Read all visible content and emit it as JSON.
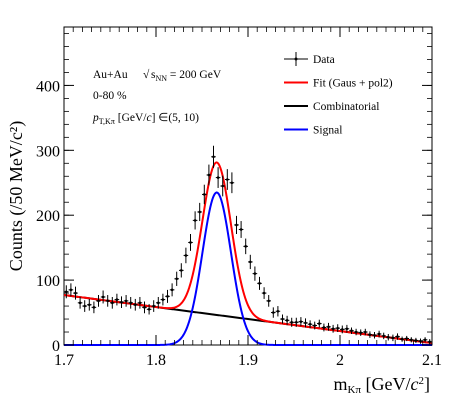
{
  "chart_data": {
    "type": "line",
    "title": "",
    "xlabel": "m_Kπ [GeV/c²]",
    "ylabel": "Counts (/50 MeV/c²)",
    "xlim": [
      1.7,
      2.1
    ],
    "ylim": [
      0,
      490
    ],
    "x_ticks": [
      1.7,
      1.8,
      1.9,
      2.0,
      2.1
    ],
    "x_tick_labels": [
      "1.7",
      "1.8",
      "1.9",
      "2",
      "2.1"
    ],
    "y_ticks": [
      0,
      100,
      200,
      300,
      400
    ],
    "y_tick_labels": [
      "0",
      "100",
      "200",
      "300",
      "400"
    ],
    "grid": false,
    "legend_position": "top-right",
    "annotations": {
      "line1_prefix": "Au+Au ",
      "line1_sqrt_s": "s",
      "line1_sub": "NN",
      "line1_suffix": " = 200 GeV",
      "line2": "0-80 %",
      "line3_p": "p",
      "line3_sub": "T,Kπ",
      "line3_units": " [GeV/",
      "line3_c": "c",
      "line3_range": "] ∈(5, 10)"
    },
    "legend": [
      {
        "name": "Data",
        "style": "errorbar",
        "color": "#000000"
      },
      {
        "name": "Fit (Gaus + pol2)",
        "style": "line",
        "color": "#ff0000"
      },
      {
        "name": "Combinatorial",
        "style": "line",
        "color": "#000000"
      },
      {
        "name": "Signal",
        "style": "line",
        "color": "#0000ff"
      }
    ],
    "data_points": [
      [
        1.7025,
        82,
        10
      ],
      [
        1.7075,
        85,
        10
      ],
      [
        1.7125,
        80,
        10
      ],
      [
        1.7175,
        65,
        9
      ],
      [
        1.7225,
        60,
        9
      ],
      [
        1.7275,
        62,
        9
      ],
      [
        1.7325,
        58,
        9
      ],
      [
        1.7375,
        68,
        9
      ],
      [
        1.7425,
        74,
        10
      ],
      [
        1.7475,
        68,
        9
      ],
      [
        1.7525,
        65,
        9
      ],
      [
        1.7575,
        70,
        9
      ],
      [
        1.7625,
        66,
        9
      ],
      [
        1.7675,
        68,
        9
      ],
      [
        1.7725,
        65,
        9
      ],
      [
        1.7775,
        62,
        9
      ],
      [
        1.7825,
        65,
        9
      ],
      [
        1.7875,
        58,
        9
      ],
      [
        1.7925,
        55,
        8
      ],
      [
        1.7975,
        60,
        9
      ],
      [
        1.8025,
        65,
        9
      ],
      [
        1.8075,
        70,
        9
      ],
      [
        1.8125,
        75,
        10
      ],
      [
        1.8175,
        85,
        10
      ],
      [
        1.8225,
        102,
        11
      ],
      [
        1.8275,
        115,
        11
      ],
      [
        1.8325,
        138,
        12
      ],
      [
        1.8375,
        158,
        13
      ],
      [
        1.8425,
        192,
        14
      ],
      [
        1.8475,
        205,
        14
      ],
      [
        1.8525,
        232,
        15
      ],
      [
        1.8575,
        262,
        16
      ],
      [
        1.8625,
        290,
        17
      ],
      [
        1.8675,
        258,
        16
      ],
      [
        1.8725,
        245,
        16
      ],
      [
        1.8775,
        255,
        16
      ],
      [
        1.8825,
        250,
        16
      ],
      [
        1.8875,
        185,
        14
      ],
      [
        1.8925,
        178,
        13
      ],
      [
        1.8975,
        152,
        12
      ],
      [
        1.9025,
        128,
        11
      ],
      [
        1.9075,
        110,
        11
      ],
      [
        1.9125,
        95,
        10
      ],
      [
        1.9175,
        80,
        9
      ],
      [
        1.9225,
        68,
        9
      ],
      [
        1.9275,
        50,
        8
      ],
      [
        1.9325,
        52,
        8
      ],
      [
        1.9375,
        40,
        7
      ],
      [
        1.9425,
        38,
        7
      ],
      [
        1.9475,
        35,
        7
      ],
      [
        1.9525,
        35,
        7
      ],
      [
        1.9575,
        36,
        7
      ],
      [
        1.9625,
        34,
        7
      ],
      [
        1.9675,
        32,
        6
      ],
      [
        1.9725,
        30,
        6
      ],
      [
        1.9775,
        33,
        6
      ],
      [
        1.9825,
        27,
        6
      ],
      [
        1.9875,
        28,
        6
      ],
      [
        1.9925,
        25,
        6
      ],
      [
        1.9975,
        26,
        6
      ],
      [
        2.0025,
        24,
        6
      ],
      [
        2.0075,
        25,
        6
      ],
      [
        2.0125,
        22,
        5
      ],
      [
        2.0175,
        20,
        5
      ],
      [
        2.0225,
        19,
        5
      ],
      [
        2.0275,
        20,
        5
      ],
      [
        2.0325,
        16,
        5
      ],
      [
        2.0375,
        15,
        5
      ],
      [
        2.0425,
        17,
        5
      ],
      [
        2.0475,
        14,
        5
      ],
      [
        2.0525,
        12,
        5
      ],
      [
        2.0575,
        11,
        5
      ],
      [
        2.0625,
        13,
        5
      ],
      [
        2.0675,
        9,
        4
      ],
      [
        2.0725,
        10,
        4
      ],
      [
        2.0775,
        8,
        4
      ],
      [
        2.0825,
        7,
        4
      ],
      [
        2.0875,
        6,
        4
      ],
      [
        2.0925,
        8,
        4
      ],
      [
        2.0975,
        5,
        4
      ]
    ],
    "signal_gaussian": {
      "mean": 1.866,
      "sigma": 0.0155,
      "amplitude": 235
    },
    "combinatorial_pol2": {
      "x0": 1.7,
      "c0": 77,
      "c1": -185,
      "c2": 0
    }
  }
}
